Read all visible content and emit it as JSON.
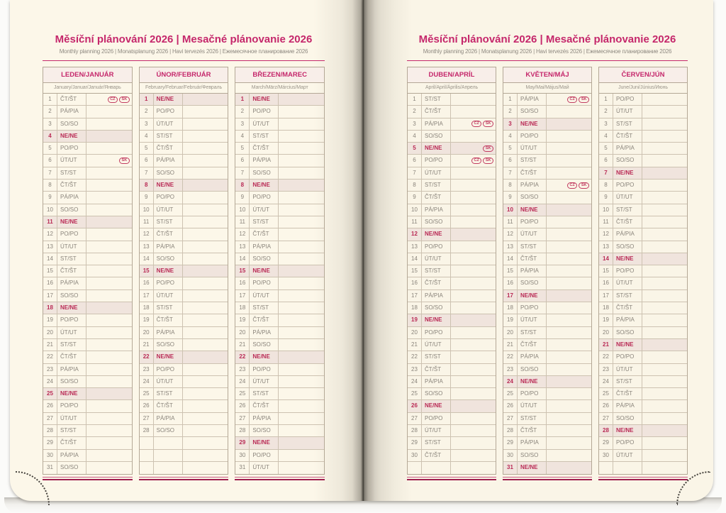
{
  "header": {
    "title": "Měsíční plánování 2026 | Mesačné plánovanie 2026",
    "subtitle": "Monthly planning 2026 | Monatsplanung 2026 | Havi tervezés 2026 | Ежемесячное планирование 2026"
  },
  "rows_per_column": 31,
  "badge_labels": {
    "cz": "CZ",
    "sk": "SK"
  },
  "colors": {
    "accent_magenta": "#c5276b",
    "sunday_red": "#b92a55",
    "sunday_row_bg": "#f0e4dd",
    "grid_border": "#b4a896",
    "page_cream": "#fcf7e9",
    "day_text_gray": "#8a847b"
  },
  "left_page": {
    "months": [
      {
        "name": "LEDEN/JANUÁR",
        "languages": "January/Januar/Január/Январь",
        "days": [
          "ČT/ŠT",
          "PÁ/PIA",
          "SO/SO",
          "NE/NE",
          "PO/PO",
          "ÚT/UT",
          "ST/ST",
          "ČT/ŠT",
          "PÁ/PIA",
          "SO/SO",
          "NE/NE",
          "PO/PO",
          "ÚT/UT",
          "ST/ST",
          "ČT/ŠT",
          "PÁ/PIA",
          "SO/SO",
          "NE/NE",
          "PO/PO",
          "ÚT/UT",
          "ST/ST",
          "ČT/ŠT",
          "PÁ/PIA",
          "SO/SO",
          "NE/NE",
          "PO/PO",
          "ÚT/UT",
          "ST/ST",
          "ČT/ŠT",
          "PÁ/PIA",
          "SO/SO"
        ],
        "holidays": {
          "1": [
            "CZ",
            "SK"
          ],
          "6": [
            "SK"
          ]
        }
      },
      {
        "name": "ÚNOR/FEBRUÁR",
        "languages": "February/Februar/Február/Февраль",
        "days": [
          "NE/NE",
          "PO/PO",
          "ÚT/UT",
          "ST/ST",
          "ČT/ŠT",
          "PÁ/PIA",
          "SO/SO",
          "NE/NE",
          "PO/PO",
          "ÚT/UT",
          "ST/ST",
          "ČT/ŠT",
          "PÁ/PIA",
          "SO/SO",
          "NE/NE",
          "PO/PO",
          "ÚT/UT",
          "ST/ST",
          "ČT/ŠT",
          "PÁ/PIA",
          "SO/SO",
          "NE/NE",
          "PO/PO",
          "ÚT/UT",
          "ST/ST",
          "ČT/ŠT",
          "PÁ/PIA",
          "SO/SO"
        ],
        "holidays": {}
      },
      {
        "name": "BŘEZEN/MAREC",
        "languages": "March/März/Március/Март",
        "days": [
          "NE/NE",
          "PO/PO",
          "ÚT/UT",
          "ST/ST",
          "ČT/ŠT",
          "PÁ/PIA",
          "SO/SO",
          "NE/NE",
          "PO/PO",
          "ÚT/UT",
          "ST/ST",
          "ČT/ŠT",
          "PÁ/PIA",
          "SO/SO",
          "NE/NE",
          "PO/PO",
          "ÚT/UT",
          "ST/ST",
          "ČT/ŠT",
          "PÁ/PIA",
          "SO/SO",
          "NE/NE",
          "PO/PO",
          "ÚT/UT",
          "ST/ST",
          "ČT/ŠT",
          "PÁ/PIA",
          "SO/SO",
          "NE/NE",
          "PO/PO",
          "ÚT/UT"
        ],
        "holidays": {}
      }
    ]
  },
  "right_page": {
    "months": [
      {
        "name": "DUBEN/APRÍL",
        "languages": "April/April/Április/Апрель",
        "days": [
          "ST/ST",
          "ČT/ŠT",
          "PÁ/PIA",
          "SO/SO",
          "NE/NE",
          "PO/PO",
          "ÚT/UT",
          "ST/ST",
          "ČT/ŠT",
          "PÁ/PIA",
          "SO/SO",
          "NE/NE",
          "PO/PO",
          "ÚT/UT",
          "ST/ST",
          "ČT/ŠT",
          "PÁ/PIA",
          "SO/SO",
          "NE/NE",
          "PO/PO",
          "ÚT/UT",
          "ST/ST",
          "ČT/ŠT",
          "PÁ/PIA",
          "SO/SO",
          "NE/NE",
          "PO/PO",
          "ÚT/UT",
          "ST/ST",
          "ČT/ŠT"
        ],
        "holidays": {
          "3": [
            "CZ",
            "SK"
          ],
          "5": [
            "SK"
          ],
          "6": [
            "CZ",
            "SK"
          ]
        }
      },
      {
        "name": "KVĚTEN/MÁJ",
        "languages": "May/Mai/Május/Май",
        "days": [
          "PÁ/PIA",
          "SO/SO",
          "NE/NE",
          "PO/PO",
          "ÚT/UT",
          "ST/ST",
          "ČT/ŠT",
          "PÁ/PIA",
          "SO/SO",
          "NE/NE",
          "PO/PO",
          "ÚT/UT",
          "ST/ST",
          "ČT/ŠT",
          "PÁ/PIA",
          "SO/SO",
          "NE/NE",
          "PO/PO",
          "ÚT/UT",
          "ST/ST",
          "ČT/ŠT",
          "PÁ/PIA",
          "SO/SO",
          "NE/NE",
          "PO/PO",
          "ÚT/UT",
          "ST/ST",
          "ČT/ŠT",
          "PÁ/PIA",
          "SO/SO",
          "NE/NE"
        ],
        "holidays": {
          "1": [
            "CZ",
            "SK"
          ],
          "8": [
            "CZ",
            "SK"
          ]
        }
      },
      {
        "name": "ČERVEN/JÚN",
        "languages": "June/Juni/Június/Июнь",
        "days": [
          "PO/PO",
          "ÚT/UT",
          "ST/ST",
          "ČT/ŠT",
          "PÁ/PIA",
          "SO/SO",
          "NE/NE",
          "PO/PO",
          "ÚT/UT",
          "ST/ST",
          "ČT/ŠT",
          "PÁ/PIA",
          "SO/SO",
          "NE/NE",
          "PO/PO",
          "ÚT/UT",
          "ST/ST",
          "ČT/ŠT",
          "PÁ/PIA",
          "SO/SO",
          "NE/NE",
          "PO/PO",
          "ÚT/UT",
          "ST/ST",
          "ČT/ŠT",
          "PÁ/PIA",
          "SO/SO",
          "NE/NE",
          "PO/PO",
          "ÚT/UT"
        ],
        "holidays": {}
      }
    ]
  }
}
